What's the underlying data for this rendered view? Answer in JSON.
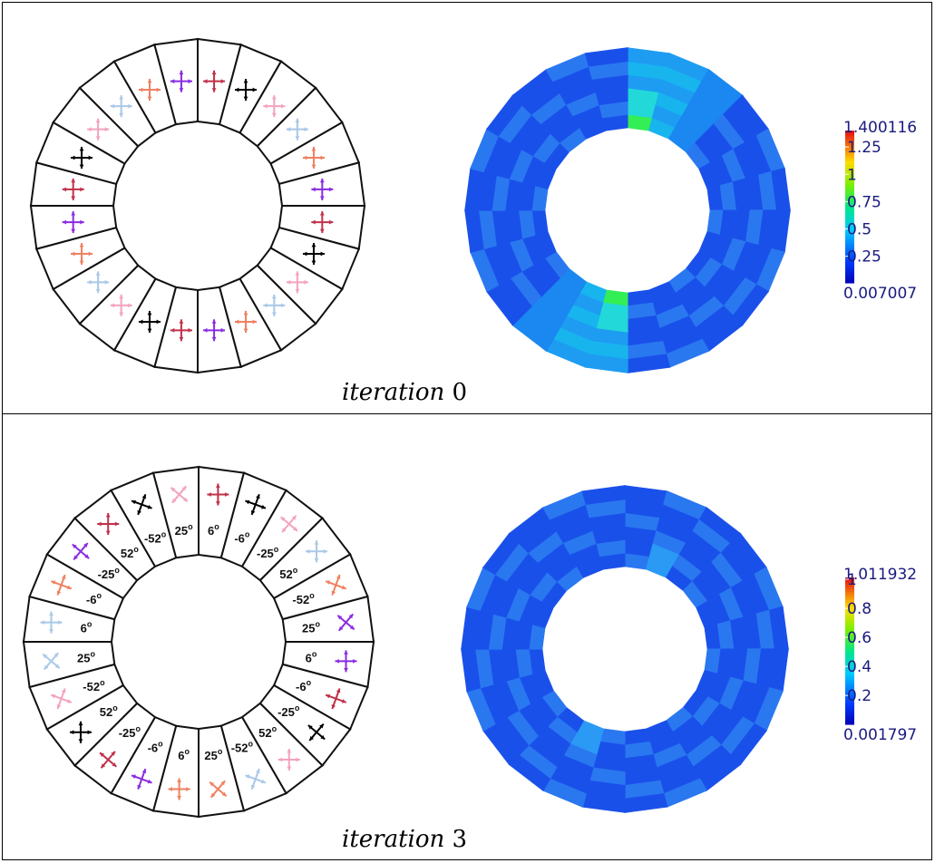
{
  "panels": [
    {
      "id": "top",
      "caption_word": "iteration",
      "caption_num": "0",
      "angles": [],
      "colorbar": {
        "max_label": "1.400116",
        "min_label": "0.007007",
        "ticks": [
          "1.25",
          "1",
          "0.75",
          "0.5",
          "0.25"
        ],
        "tick_values": [
          1.25,
          1.0,
          0.75,
          0.5,
          0.25
        ],
        "min": 0.007007,
        "max": 1.400116
      }
    },
    {
      "id": "bottom",
      "caption_word": "iteration",
      "caption_num": "3",
      "angles": [
        "6o",
        "-6o",
        "-25o",
        "52o",
        "-52o",
        "25o",
        "6o",
        "-6o",
        "-25o",
        "52o",
        "-52o",
        "25o",
        "6o",
        "-6o",
        "-25o",
        "52o",
        "-52o",
        "25o",
        "6o",
        "-6o",
        "-25o",
        "52o",
        "-52o",
        "25o"
      ],
      "colorbar": {
        "max_label": "1.011932",
        "min_label": "0.001797",
        "ticks": [
          "1",
          "0.8",
          "0.6",
          "0.4",
          "0.2"
        ],
        "tick_values": [
          1.0,
          0.8,
          0.6,
          0.4,
          0.2
        ],
        "min": 0.001797,
        "max": 1.011932
      }
    }
  ],
  "arrow_colors": [
    "#c0314a",
    "#000000",
    "#f3a3bd",
    "#a9c8e8",
    "#f08060",
    "#8a2be2"
  ],
  "arrow_color_names": [
    "crimson",
    "black",
    "pink",
    "light-blue",
    "salmon",
    "violet"
  ],
  "field_colors": {
    "base": "#1a50ea",
    "light": "#2a78f0",
    "cyan": "#22d8d8",
    "green": "#33ee55"
  }
}
